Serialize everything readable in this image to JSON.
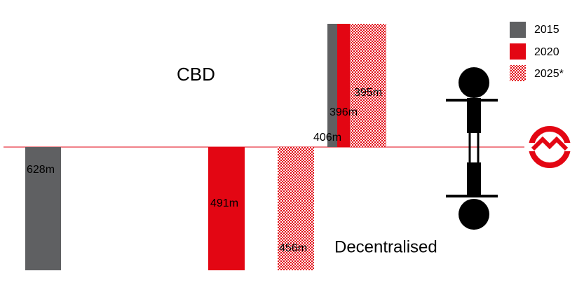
{
  "legend": [
    "2015",
    "2020",
    "2025*"
  ],
  "cbd": {
    "label": "CBD",
    "bars": [
      "406m",
      "396m",
      "395m"
    ]
  },
  "decentralised": {
    "label": "Decentralised",
    "bars": [
      "628m",
      "491m",
      "456m"
    ]
  }
}
